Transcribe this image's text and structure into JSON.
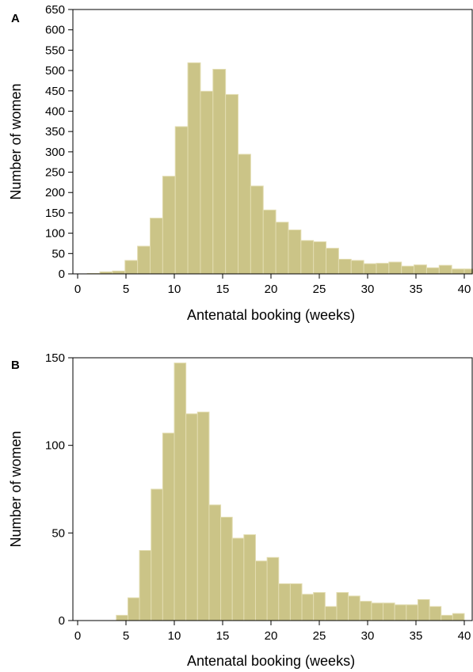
{
  "colors": {
    "bar_fill": "#cbc487",
    "bar_stroke": "#e2dcb0",
    "axis": "#000000"
  },
  "chart_data": [
    {
      "type": "bar",
      "panel": "A",
      "xlabel": "Antenatal booking (weeks)",
      "ylabel": "Number of women",
      "xlim": [
        0,
        40
      ],
      "ylim": [
        0,
        650
      ],
      "xticks": [
        "0",
        "5",
        "10",
        "15",
        "20",
        "25",
        "30",
        "35",
        "40"
      ],
      "yticks": [
        "0",
        "50",
        "100",
        "150",
        "200",
        "250",
        "300",
        "350",
        "400",
        "450",
        "500",
        "550",
        "600",
        "650"
      ],
      "grid": false,
      "bin_start": 1,
      "bin_width": 1.3,
      "values": [
        1,
        5,
        7,
        33,
        68,
        137,
        240,
        362,
        519,
        449,
        503,
        441,
        294,
        216,
        157,
        127,
        108,
        82,
        79,
        63,
        36,
        33,
        25,
        26,
        29,
        19,
        22,
        15,
        21,
        12,
        12,
        14,
        9,
        7,
        7
      ]
    },
    {
      "type": "bar",
      "panel": "B",
      "xlabel": "Antenatal booking (weeks)",
      "ylabel": "Number of women",
      "xlim": [
        0,
        40
      ],
      "ylim": [
        0,
        150
      ],
      "xticks": [
        "0",
        "5",
        "10",
        "15",
        "20",
        "25",
        "30",
        "35",
        "40"
      ],
      "yticks": [
        "0",
        "50",
        "100",
        "150"
      ],
      "grid": false,
      "bin_start": 4,
      "bin_width": 1.2,
      "values": [
        3,
        13,
        40,
        75,
        107,
        147,
        118,
        119,
        66,
        59,
        47,
        49,
        34,
        36,
        21,
        21,
        15,
        16,
        8,
        16,
        14,
        11,
        10,
        10,
        9,
        9,
        12,
        8,
        3,
        4
      ]
    }
  ]
}
